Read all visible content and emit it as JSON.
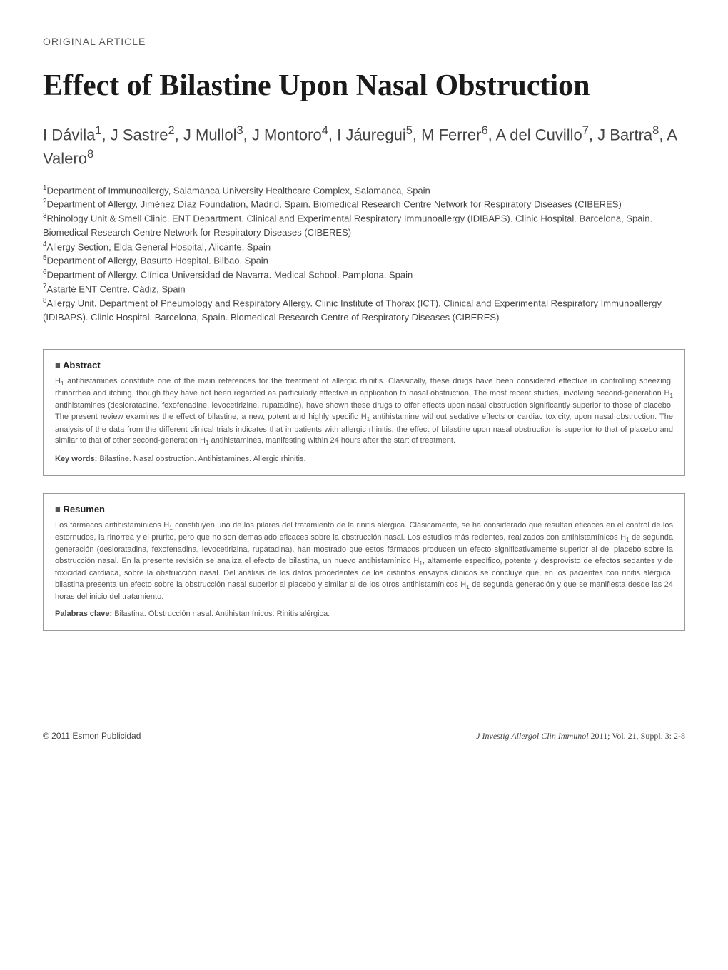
{
  "article_type": "ORIGINAL ARTICLE",
  "title": "Effect of Bilastine Upon Nasal Obstruction",
  "authors_html": "I Dávila<span class='sup'>1</span>, J Sastre<span class='sup'>2</span>, J Mullol<span class='sup'>3</span>, J Montoro<span class='sup'>4</span>, I Jáuregui<span class='sup'>5</span>, M Ferrer<span class='sup'>6</span>, A del Cuvillo<span class='sup'>7</span>, J Bartra<span class='sup'>8</span>, A Valero<span class='sup'>8</span>",
  "affiliations": [
    "<span class='sup'>1</span>Department of Immunoallergy, Salamanca University Healthcare Complex, Salamanca, Spain",
    "<span class='sup'>2</span>Department of Allergy, Jiménez Díaz Foundation, Madrid, Spain. Biomedical Research Centre Network for Respiratory Diseases (CIBERES)",
    "<span class='sup'>3</span>Rhinology Unit & Smell Clinic, ENT Department. Clinical and Experimental Respiratory Immunoallergy (IDIBAPS). Clinic Hospital. Barcelona, Spain. Biomedical Research Centre Network for Respiratory Diseases (CIBERES)",
    "<span class='sup'>4</span>Allergy Section, Elda General Hospital, Alicante, Spain",
    "<span class='sup'>5</span>Department of Allergy, Basurto Hospital. Bilbao, Spain",
    "<span class='sup'>6</span>Department of Allergy. Clínica Universidad de Navarra. Medical School. Pamplona, Spain",
    "<span class='sup'>7</span>Astarté ENT Centre. Cádiz, Spain",
    "<span class='sup'>8</span>Allergy Unit. Department of Pneumology and Respiratory Allergy. Clinic Institute of Thorax (ICT). Clinical and Experimental Respiratory Immunoallergy (IDIBAPS). Clinic Hospital. Barcelona, Spain. Biomedical Research Centre of Respiratory Diseases (CIBERES)"
  ],
  "abstract": {
    "heading": "Abstract",
    "body_html": "H<span class='sub'>1</span> antihistamines constitute one of the main references for the treatment of allergic rhinitis. Classically, these drugs have been considered effective in controlling sneezing, rhinorrhea and itching, though they have not been regarded as particularly effective in application to nasal obstruction. The most recent studies, involving second-generation H<span class='sub'>1</span> antihistamines (desloratadine, fexofenadine, levocetirizine, rupatadine), have shown these drugs to offer effects upon nasal obstruction significantly superior to those of placebo. The present review examines the effect of bilastine, a new, potent and highly specific H<span class='sub'>1</span> antihistamine without sedative effects or cardiac toxicity, upon nasal obstruction. The analysis of the data from the different clinical trials indicates that in patients with allergic rhinitis, the effect of bilastine upon nasal obstruction is superior to that of placebo and similar to that of other second-generation H<span class='sub'>1</span> antihistamines, manifesting within 24 hours after the start of treatment.",
    "keywords_label": "Key words:",
    "keywords": "Bilastine. Nasal obstruction. Antihistamines. Allergic rhinitis."
  },
  "resumen": {
    "heading": "Resumen",
    "body_html": "Los fármacos antihistamínicos H<span class='sub'>1</span> constituyen uno de los pilares del tratamiento de la rinitis alérgica. Clásicamente, se ha considerado que resultan eficaces en el control de los estornudos, la rinorrea y el prurito, pero que no son demasiado eficaces sobre la obstrucción nasal. Los estudios más recientes, realizados con antihistamínicos H<span class='sub'>1</span> de segunda generación (desloratadina, fexofenadina, levocetirizina, rupatadina), han mostrado que estos fármacos producen un efecto significativamente superior al del placebo sobre la obstrucción nasal. En la presente revisión se analiza el efecto de bilastina, un nuevo antihistamínico H<span class='sub'>1</span>, altamente específico, potente y desprovisto de efectos sedantes y de toxicidad cardiaca, sobre la obstrucción nasal. Del análisis de los datos procedentes de los distintos ensayos clínicos se concluye que, en los pacientes con rinitis alérgica, bilastina presenta un efecto sobre la obstrucción nasal superior al placebo y similar al de los otros antihistamínicos H<span class='sub'>1</span> de segunda generación y que se manifiesta desde las 24 horas del inicio del tratamiento.",
    "keywords_label": "Palabras clave:",
    "keywords": "Bilastina. Obstrucción nasal. Antihistamínicos. Rinitis alérgica."
  },
  "footer": {
    "left": "© 2011 Esmon Publicidad",
    "right_italic": "J Investig Allergol Clin Immunol",
    "right_plain": " 2011; Vol. 21, Suppl. 3: 2-8"
  },
  "colors": {
    "background": "#ffffff",
    "text_primary": "#333333",
    "title": "#1a1a1a",
    "border": "#999999",
    "box_text": "#555555"
  },
  "typography": {
    "title_fontsize": 42,
    "authors_fontsize": 22,
    "affiliations_fontsize": 13,
    "box_text_fontsize": 11,
    "article_type_fontsize": 14
  }
}
